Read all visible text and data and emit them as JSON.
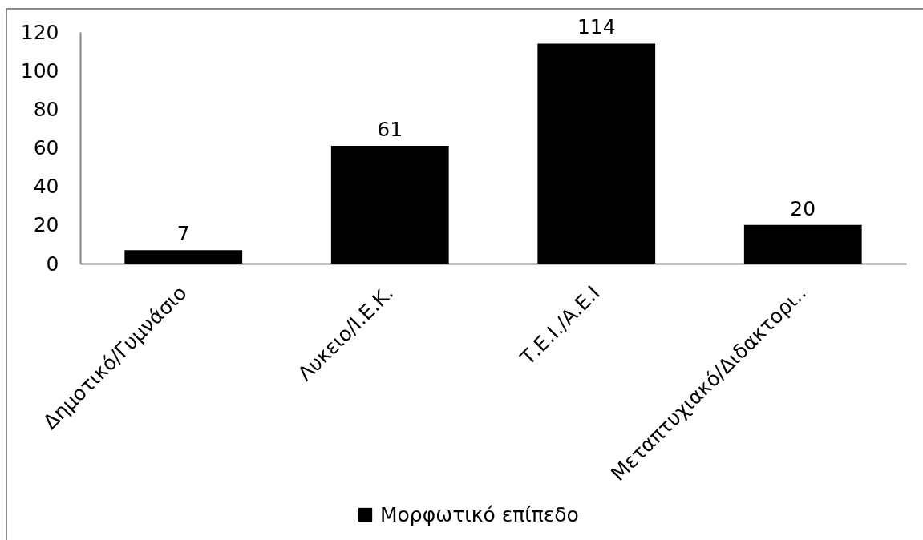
{
  "chart_data": {
    "type": "bar",
    "categories": [
      "Δημοτικό/Γυμνάσιο",
      "Λυκειο/Ι.Ε.Κ.",
      "Τ.Ε.Ι./Α.Ε.Ι",
      "Μεταπτυχιακό/Διδακτορι.."
    ],
    "series": [
      {
        "name": "Μορφωτικό επίπεδο",
        "color": "#000000",
        "values": [
          7,
          61,
          114,
          20
        ]
      }
    ],
    "ylim": [
      0,
      120
    ],
    "yticks": [
      0,
      20,
      40,
      60,
      80,
      100,
      120
    ],
    "data_labels": true,
    "legend": "bottom"
  }
}
